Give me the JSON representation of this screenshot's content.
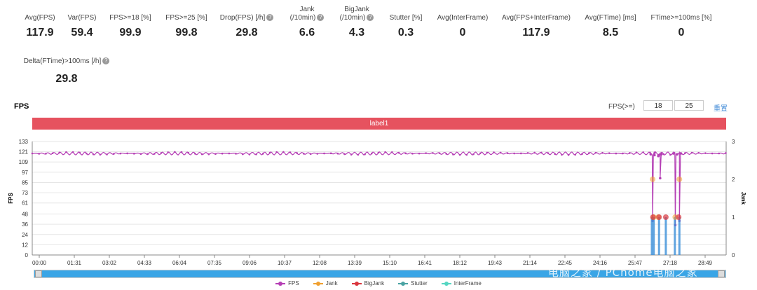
{
  "metrics": [
    {
      "label": "Avg(FPS)",
      "label2": "",
      "value": "117.9",
      "help": false
    },
    {
      "label": "Var(FPS)",
      "label2": "",
      "value": "59.4",
      "help": false
    },
    {
      "label": "FPS>=18 [%]",
      "label2": "",
      "value": "99.9",
      "help": false
    },
    {
      "label": "FPS>=25 [%]",
      "label2": "",
      "value": "99.8",
      "help": false
    },
    {
      "label": "Drop(FPS) [/h]",
      "label2": "",
      "value": "29.8",
      "help": true
    },
    {
      "label": "Jank",
      "label2": "(/10min)",
      "value": "6.6",
      "help": true
    },
    {
      "label": "BigJank",
      "label2": "(/10min)",
      "value": "4.3",
      "help": true
    },
    {
      "label": "Stutter [%]",
      "label2": "",
      "value": "0.3",
      "help": false
    },
    {
      "label": "Avg(InterFrame)",
      "label2": "",
      "value": "0",
      "help": false
    },
    {
      "label": "Avg(FPS+InterFrame)",
      "label2": "",
      "value": "117.9",
      "help": false
    },
    {
      "label": "Avg(FTime) [ms]",
      "label2": "",
      "value": "8.5",
      "help": false
    },
    {
      "label": "FTime>=100ms [%]",
      "label2": "",
      "value": "0",
      "help": false
    },
    {
      "label": "Delta(FTime)>100ms [/h]",
      "label2": "",
      "value": "29.8",
      "help": true
    }
  ],
  "chart_title": "FPS",
  "controls": {
    "fps_threshold_label": "FPS(>=)",
    "threshold_1": "18",
    "threshold_2": "25",
    "reset_label": "重置"
  },
  "label_bar": "label1",
  "watermark": "电脑之家 / PChome电脑之家",
  "colors": {
    "fps": "#b53fb5",
    "jank": "#f0a030",
    "bigjank": "#d9363e",
    "stutter": "#4aa3a3",
    "interframe": "#55d6c2",
    "label_bar": "#e6525f",
    "scrollbar": "#39a5e6"
  },
  "chart_data": {
    "type": "line",
    "title": "FPS",
    "ylabel": "FPS",
    "y2label": "Jank",
    "ylim": [
      0,
      133
    ],
    "y2lim": [
      0,
      3
    ],
    "yticks": [
      0,
      12,
      24,
      36,
      48,
      61,
      73,
      85,
      97,
      109,
      121,
      133
    ],
    "y2ticks": [
      0,
      1,
      2,
      3
    ],
    "xlim": [
      0,
      1840
    ],
    "xticks": [
      "00:00",
      "01:31",
      "03:02",
      "04:33",
      "06:04",
      "07:35",
      "09:06",
      "10:37",
      "12:08",
      "13:39",
      "15:10",
      "16:41",
      "18:12",
      "19:43",
      "21:14",
      "22:45",
      "24:16",
      "25:47",
      "27:18",
      "28:49"
    ],
    "series": [
      {
        "name": "FPS",
        "axis": "left",
        "baseline": 119,
        "x_end": 1840,
        "dips": [
          [
            1640,
            118
          ],
          [
            1645,
            40
          ],
          [
            1650,
            117
          ],
          [
            1660,
            116
          ],
          [
            1665,
            90
          ],
          [
            1668,
            118
          ],
          [
            1700,
            119
          ],
          [
            1705,
            35
          ],
          [
            1710,
            118
          ],
          [
            1716,
            40
          ],
          [
            1720,
            119
          ]
        ]
      },
      {
        "name": "Jank",
        "axis": "right",
        "points": [
          [
            1645,
            2
          ],
          [
            1648,
            1
          ],
          [
            1660,
            1
          ],
          [
            1705,
            1
          ],
          [
            1716,
            2
          ]
        ]
      },
      {
        "name": "BigJank",
        "axis": "right",
        "points": [
          [
            1646,
            1
          ],
          [
            1662,
            1
          ],
          [
            1680,
            1
          ],
          [
            1714,
            1
          ]
        ]
      },
      {
        "name": "Stutter",
        "axis": "right",
        "points": []
      },
      {
        "name": "InterFrame",
        "axis": "right",
        "points": []
      }
    ],
    "legend": [
      "FPS",
      "Jank",
      "BigJank",
      "Stutter",
      "InterFrame"
    ],
    "legend_position": "bottom",
    "grid": true
  }
}
